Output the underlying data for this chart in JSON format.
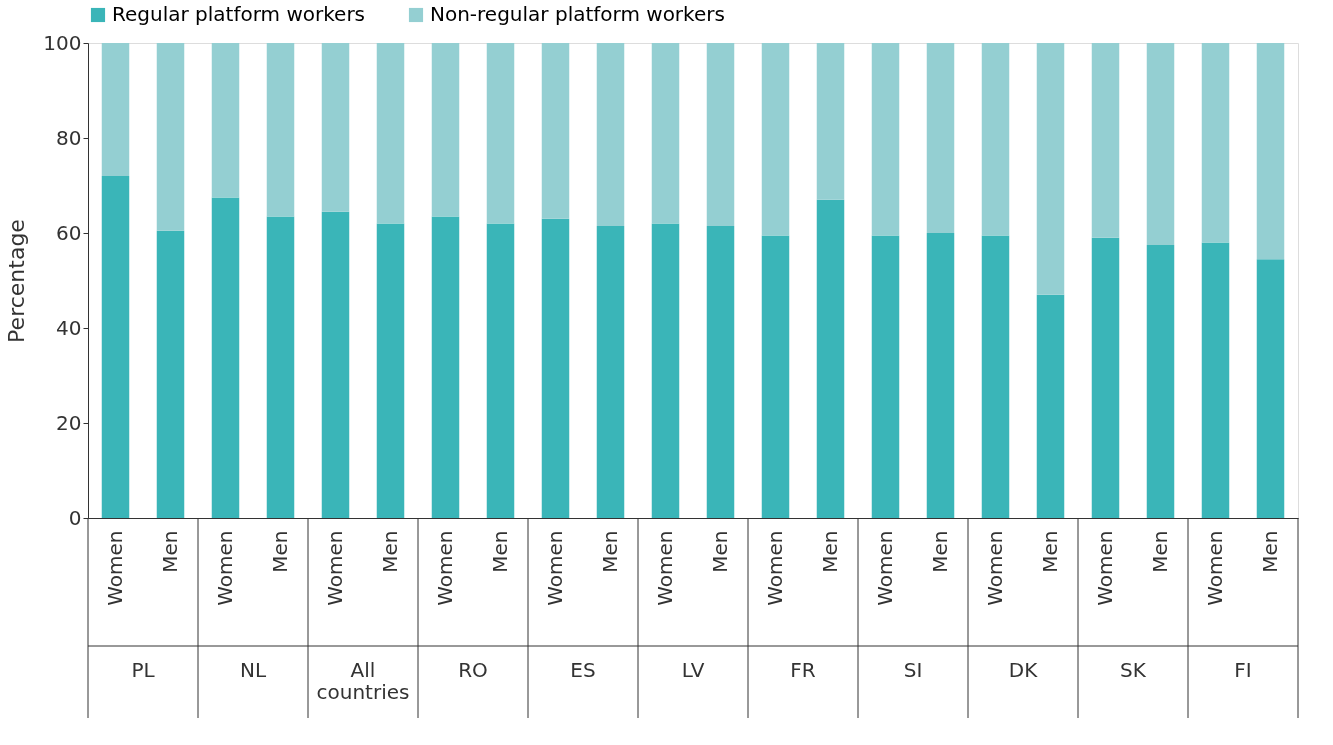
{
  "chart_data": {
    "type": "bar",
    "stacked": true,
    "ylabel": "Percentage",
    "ylim": [
      0,
      100
    ],
    "yticks": [
      0,
      20,
      40,
      60,
      80,
      100
    ],
    "grid": false,
    "legend": "top",
    "categories": [
      "Women",
      "Men",
      "Women",
      "Men",
      "Women",
      "Men",
      "Women",
      "Men",
      "Women",
      "Men",
      "Women",
      "Men",
      "Women",
      "Men",
      "Women",
      "Men",
      "Women",
      "Men",
      "Women",
      "Men",
      "Women",
      "Men"
    ],
    "annotations": [
      "PL",
      "NL",
      "All countries",
      "RO",
      "ES",
      "LV",
      "FR",
      "SI",
      "DK",
      "SK",
      "FI"
    ],
    "series": [
      {
        "name": "Regular platform workers",
        "color": "#3ab5b8",
        "values": [
          72,
          60.5,
          67.5,
          63.5,
          64.5,
          62,
          63.5,
          62,
          63,
          61.5,
          62,
          61.5,
          59.5,
          67,
          59.5,
          60,
          59.5,
          47,
          59,
          57.5,
          58,
          54.5
        ]
      },
      {
        "name": "Non-regular platform workers",
        "color": "#94cfd2",
        "values": [
          28,
          39.5,
          32.5,
          36.5,
          35.5,
          38,
          36.5,
          38,
          37,
          38.5,
          38,
          38.5,
          40.5,
          33,
          40.5,
          40,
          40.5,
          53,
          41,
          42.5,
          42,
          45.5
        ]
      }
    ]
  }
}
